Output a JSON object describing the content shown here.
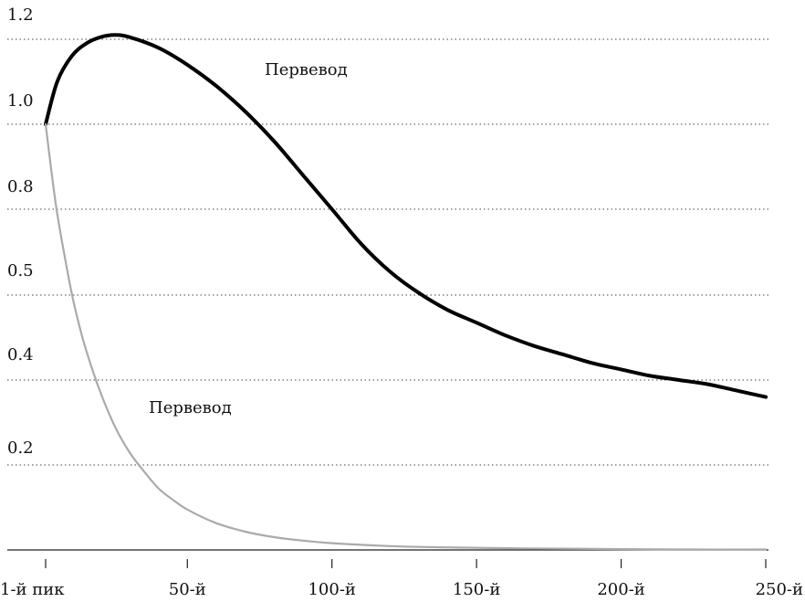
{
  "chart_data": {
    "type": "line",
    "x_tick_labels": [
      "1-й пик",
      "50-й",
      "100-й",
      "150-й",
      "200-й",
      "250-й"
    ],
    "x_tick_values": [
      1,
      50,
      100,
      150,
      200,
      250
    ],
    "xlim": [
      1,
      250
    ],
    "y_tick_labels": [
      "1.2",
      "1.0",
      "0.8",
      "0.5",
      "0.4",
      "0.2"
    ],
    "grid": true,
    "series": [
      {
        "name": "Первевод",
        "color": "#000000",
        "x": [
          1,
          5,
          10,
          15,
          20,
          25,
          30,
          40,
          50,
          60,
          70,
          80,
          90,
          100,
          110,
          120,
          130,
          140,
          150,
          160,
          170,
          180,
          190,
          200,
          210,
          220,
          230,
          240,
          250
        ],
        "y": [
          1.0,
          1.1,
          1.16,
          1.19,
          1.205,
          1.21,
          1.205,
          1.18,
          1.14,
          1.09,
          1.03,
          0.96,
          0.88,
          0.8,
          0.72,
          0.655,
          0.605,
          0.565,
          0.535,
          0.505,
          0.48,
          0.46,
          0.44,
          0.425,
          0.41,
          0.4,
          0.39,
          0.375,
          0.36
        ]
      },
      {
        "name": "Первевод",
        "color": "#aaaaaa",
        "x": [
          1,
          3,
          5,
          8,
          10,
          12,
          15,
          20,
          25,
          30,
          35,
          40,
          45,
          50,
          60,
          70,
          80,
          90,
          100,
          120,
          140,
          160,
          180,
          200,
          220,
          250
        ],
        "y": [
          1.0,
          0.89,
          0.79,
          0.675,
          0.605,
          0.545,
          0.47,
          0.37,
          0.29,
          0.23,
          0.185,
          0.145,
          0.118,
          0.095,
          0.063,
          0.043,
          0.03,
          0.022,
          0.016,
          0.009,
          0.006,
          0.004,
          0.003,
          0.002,
          0.001,
          0.001
        ]
      }
    ]
  }
}
